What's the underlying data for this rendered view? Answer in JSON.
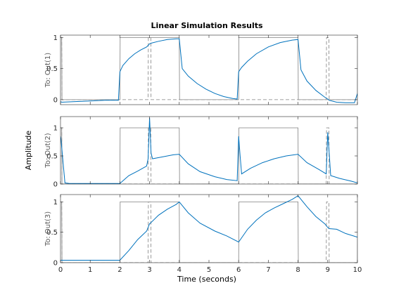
{
  "chart_data": {
    "type": "line",
    "title": "Linear Simulation Results",
    "xlabel": "Time (seconds)",
    "ylabel": "Amplitude",
    "xlim": [
      0,
      10
    ],
    "xticks": [
      "0",
      "1",
      "2",
      "3",
      "4",
      "5",
      "6",
      "7",
      "8",
      "9",
      "10"
    ],
    "colors": {
      "response": "#0072bd",
      "input": "#808080"
    },
    "subplots": [
      {
        "label": "To: Out(1)",
        "ylim": [
          -0.08,
          1.04
        ],
        "yticks": [
          "0",
          "0.5",
          "1"
        ],
        "inputs": [
          {
            "style": "solid",
            "x": [
              0,
              0.04,
              0.05,
              2,
              2.01,
              4,
              4.01,
              6,
              6.01,
              8,
              8.01,
              10,
              10.01
            ],
            "y": [
              1,
              1,
              0,
              0,
              1,
              1,
              0,
              0,
              1,
              1,
              0,
              0,
              1
            ]
          },
          {
            "style": "dashed",
            "x": [
              0,
              0.04,
              0.05,
              2.95,
              2.96,
              3.04,
              3.05,
              8.95,
              8.96,
              9.04,
              9.05,
              10
            ],
            "y": [
              1,
              1,
              0,
              0,
              1,
              1,
              0,
              0,
              1,
              1,
              0,
              0
            ]
          }
        ],
        "response": {
          "x": [
            0,
            0.04,
            0.5,
            1,
            1.5,
            1.95,
            2.0,
            2.1,
            2.3,
            2.5,
            2.7,
            2.9,
            3.0,
            3.05,
            3.3,
            3.6,
            3.9,
            4.0,
            4.1,
            4.3,
            4.6,
            4.9,
            5.2,
            5.5,
            5.8,
            5.95,
            6.0,
            6.1,
            6.3,
            6.6,
            7.0,
            7.4,
            7.8,
            8.0,
            8.1,
            8.3,
            8.6,
            8.9,
            9.0,
            9.05,
            9.3,
            9.6,
            9.9,
            10.0
          ],
          "y": [
            -0.03,
            -0.04,
            -0.03,
            -0.02,
            -0.01,
            -0.01,
            0.45,
            0.55,
            0.66,
            0.74,
            0.8,
            0.85,
            0.9,
            0.91,
            0.94,
            0.97,
            0.98,
            0.98,
            0.5,
            0.38,
            0.26,
            0.17,
            0.1,
            0.05,
            0.02,
            0.01,
            0.45,
            0.52,
            0.62,
            0.74,
            0.85,
            0.92,
            0.96,
            0.97,
            0.48,
            0.3,
            0.15,
            0.04,
            0.01,
            -0.01,
            -0.04,
            -0.05,
            -0.05,
            0.1
          ]
        }
      },
      {
        "label": "To: Out(2)",
        "ylim": [
          0,
          1.2
        ],
        "yticks": [
          "0",
          "0.5",
          "1"
        ],
        "inputs": [
          {
            "style": "solid",
            "x": [
              0,
              0.04,
              0.05,
              2,
              2.01,
              4,
              4.01,
              6,
              6.01,
              8,
              8.01,
              10,
              10.01
            ],
            "y": [
              1,
              1,
              0,
              0,
              1,
              1,
              0,
              0,
              1,
              1,
              0,
              0,
              1
            ]
          },
          {
            "style": "dashed",
            "x": [
              0,
              0.04,
              0.05,
              2.95,
              2.96,
              3.04,
              3.05,
              8.95,
              8.96,
              9.04,
              9.05,
              10
            ],
            "y": [
              1,
              1,
              0,
              0,
              1,
              1,
              0,
              0,
              1,
              1,
              0,
              0
            ]
          }
        ],
        "response": {
          "x": [
            0,
            0.02,
            0.15,
            0.3,
            1,
            2.0,
            2.3,
            2.6,
            2.9,
            2.95,
            3.0,
            3.05,
            3.1,
            3.4,
            3.8,
            4.0,
            4.3,
            4.7,
            5.2,
            5.6,
            5.95,
            6.0,
            6.05,
            6.1,
            6.4,
            6.8,
            7.2,
            7.6,
            8.0,
            8.3,
            8.7,
            8.95,
            9.0,
            9.05,
            9.1,
            9.4,
            9.8,
            10.0
          ],
          "y": [
            0.85,
            0.78,
            0.02,
            0.01,
            0.01,
            0.01,
            0.15,
            0.23,
            0.32,
            0.45,
            1.18,
            0.55,
            0.45,
            0.48,
            0.52,
            0.53,
            0.36,
            0.22,
            0.13,
            0.08,
            0.06,
            0.85,
            0.5,
            0.18,
            0.28,
            0.38,
            0.45,
            0.5,
            0.53,
            0.38,
            0.26,
            0.18,
            0.92,
            0.55,
            0.15,
            0.1,
            0.05,
            0.02
          ]
        }
      },
      {
        "label": "To: Out(3)",
        "ylim": [
          0,
          1.12
        ],
        "yticks": [
          "0",
          "0.5",
          "1"
        ],
        "inputs": [
          {
            "style": "solid",
            "x": [
              0,
              0.04,
              0.05,
              2,
              2.01,
              4,
              4.01,
              6,
              6.01,
              8,
              8.01,
              10,
              10.01
            ],
            "y": [
              1,
              1,
              0,
              0,
              1,
              1,
              0,
              0,
              1,
              1,
              0,
              0,
              1
            ]
          },
          {
            "style": "dashed",
            "x": [
              0,
              0.04,
              0.05,
              2.95,
              2.96,
              3.04,
              3.05,
              8.95,
              8.96,
              9.04,
              9.05,
              10
            ],
            "y": [
              1,
              1,
              0,
              0,
              1,
              1,
              0,
              0,
              1,
              1,
              0,
              0
            ]
          }
        ],
        "response": {
          "x": [
            0,
            0.5,
            1,
            1.5,
            2.0,
            2.3,
            2.6,
            2.9,
            3.0,
            3.05,
            3.3,
            3.6,
            3.9,
            4.0,
            4.3,
            4.7,
            5.2,
            5.6,
            6.0,
            6.3,
            6.6,
            6.9,
            7.2,
            7.5,
            7.8,
            8.0,
            8.3,
            8.6,
            8.9,
            9.0,
            9.05,
            9.3,
            9.6,
            10.0
          ],
          "y": [
            0.04,
            0.04,
            0.04,
            0.04,
            0.04,
            0.2,
            0.38,
            0.52,
            0.64,
            0.66,
            0.78,
            0.88,
            0.96,
            1.0,
            0.82,
            0.65,
            0.52,
            0.44,
            0.34,
            0.55,
            0.7,
            0.82,
            0.9,
            0.97,
            1.04,
            1.1,
            0.92,
            0.76,
            0.64,
            0.58,
            0.56,
            0.55,
            0.48,
            0.42
          ]
        }
      }
    ]
  }
}
